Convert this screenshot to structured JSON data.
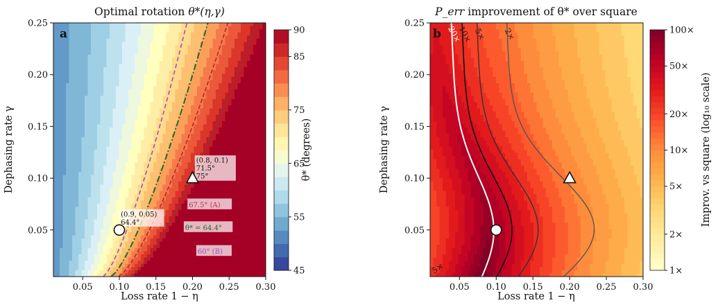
{
  "chart_data": [
    {
      "panel": "a",
      "type": "heatmap",
      "title_text": "Optimal rotation ",
      "title_math": "θ*(η,γ)",
      "xlabel": "Loss rate 1 − η",
      "ylabel": "Dephasing rate γ",
      "xlim": [
        0.01,
        0.3
      ],
      "ylim": [
        0.005,
        0.25
      ],
      "xticks": [
        "0.05",
        "0.10",
        "0.15",
        "0.20",
        "0.25",
        "0.30"
      ],
      "xtick_values": [
        0.05,
        0.1,
        0.15,
        0.2,
        0.25,
        0.3
      ],
      "yticks": [
        "0.05",
        "0.10",
        "0.15",
        "0.20",
        "0.25"
      ],
      "ytick_values": [
        0.05,
        0.1,
        0.15,
        0.2,
        0.25
      ],
      "colorbar": {
        "label": "θ* (degrees)",
        "range": [
          45,
          90
        ],
        "ticks": [
          "45",
          "55",
          "65",
          "75",
          "85",
          "90"
        ],
        "tick_values": [
          45,
          55,
          65,
          75,
          85,
          90
        ],
        "colormap": "RdYlBu_r"
      },
      "contours": [
        {
          "label": "θ* = 64.4°",
          "value": 64.4,
          "style": "dashed",
          "color": "#9b4fc4"
        },
        {
          "label": "θ* = 64.4°",
          "value": 64.4,
          "style": "dash-dot",
          "color": "#1e6b2a"
        },
        {
          "label": "67.5° (A)",
          "value": 67.5,
          "style": "dashed",
          "color": "#b22a2a"
        },
        {
          "label": "60° (B)",
          "value": 60,
          "style": "dotted",
          "color": "#555555"
        }
      ],
      "markers": [
        {
          "shape": "circle",
          "x": 0.1,
          "y": 0.05,
          "label_line1": "(0.9, 0.05)",
          "label_line2": "64.4°"
        },
        {
          "shape": "triangle",
          "x": 0.2,
          "y": 0.1,
          "label_line1": "(0.8, 0.1)",
          "label_line2": "71.5°",
          "label_line3": "75°"
        }
      ],
      "annotations": [
        {
          "text": "67.5° (A)",
          "color": "#c0304a"
        },
        {
          "text": "θ* = 64.4°",
          "color": "#1e6b2a"
        },
        {
          "text": "60° (B)",
          "color": "#9b4fc4"
        }
      ]
    },
    {
      "panel": "b",
      "type": "heatmap",
      "title_text": " improvement of θ* over square",
      "title_math": "P_err",
      "xlabel": "Loss rate 1 − η",
      "ylabel": "Dephasing rate γ",
      "xlim": [
        0.01,
        0.3
      ],
      "ylim": [
        0.005,
        0.25
      ],
      "xticks": [
        "0.05",
        "0.10",
        "0.15",
        "0.20",
        "0.25",
        "0.30"
      ],
      "xtick_values": [
        0.05,
        0.1,
        0.15,
        0.2,
        0.25,
        0.3
      ],
      "yticks": [
        "0.05",
        "0.10",
        "0.15",
        "0.20",
        "0.25"
      ],
      "ytick_values": [
        0.05,
        0.1,
        0.15,
        0.2,
        0.25
      ],
      "colorbar": {
        "label": "Improv. vs square (log₁₀ scale)",
        "scale": "log",
        "range": [
          1,
          100
        ],
        "ticks": [
          "1×",
          "2×",
          "5×",
          "10×",
          "20×",
          "50×",
          "100×"
        ],
        "tick_values": [
          1,
          2,
          5,
          10,
          20,
          50,
          100
        ],
        "colormap": "YlOrRd"
      },
      "contours": [
        {
          "label": "20×",
          "value": 20,
          "color": "#ffffff"
        },
        {
          "label": "10×",
          "value": 10,
          "color": "#111111"
        },
        {
          "label": "5×",
          "value": 5,
          "color": "#333333"
        },
        {
          "label": "2×",
          "value": 2,
          "color": "#555555"
        }
      ],
      "markers": [
        {
          "shape": "circle",
          "x": 0.1,
          "y": 0.05
        },
        {
          "shape": "triangle",
          "x": 0.2,
          "y": 0.1
        }
      ],
      "corner_label": "5×"
    }
  ]
}
